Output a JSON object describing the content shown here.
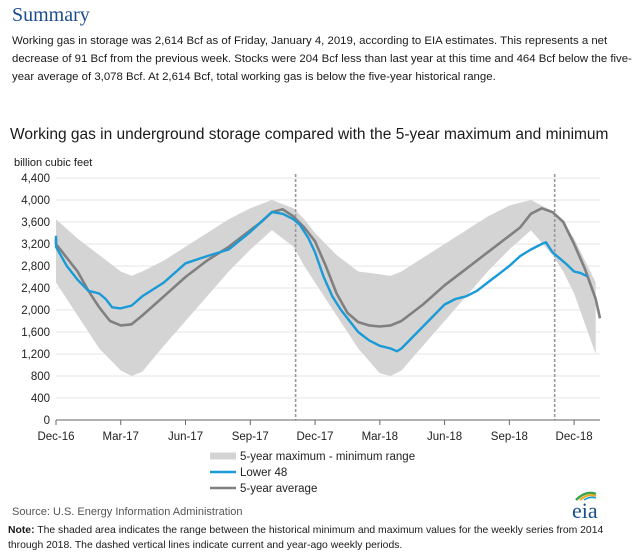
{
  "summary": {
    "title": "Summary",
    "text": "Working gas in storage was 2,614 Bcf as of Friday, January 4, 2019, according to EIA estimates. This represents a net decrease of 91 Bcf from the previous week. Stocks were 204 Bcf less than last year at this time and 464 Bcf below the five-year average of 3,078 Bcf. At 2,614 Bcf, total working gas is below the five-year historical range."
  },
  "footer": {
    "source": "Source:  U.S. Energy Information Administration",
    "note_label": "Note:",
    "note_text": " The shaded area indicates the range between the historical minimum and maximum values for the weekly series from 2014 through 2018. The dashed vertical lines indicate current and year-ago weekly periods.",
    "logo_text": "eia"
  },
  "colors": {
    "range": "#d4d4d4",
    "lower48": "#1a9ad6",
    "avg": "#808080",
    "axis": "#666666",
    "dashed": "#999999"
  },
  "chart_data": {
    "type": "line",
    "title": "Working gas in underground storage compared with the 5-year maximum and minimum",
    "ylabel": "billion cubic feet",
    "ylim": [
      0,
      4400
    ],
    "yticks": [
      0,
      400,
      800,
      1200,
      1600,
      2000,
      2400,
      2800,
      3200,
      3600,
      4000,
      4400
    ],
    "xlim": [
      0,
      25.2
    ],
    "xticks": [
      {
        "x": 0,
        "label": "Dec-16"
      },
      {
        "x": 3,
        "label": "Mar-17"
      },
      {
        "x": 6,
        "label": "Jun-17"
      },
      {
        "x": 9,
        "label": "Sep-17"
      },
      {
        "x": 12,
        "label": "Dec-17"
      },
      {
        "x": 15,
        "label": "Mar-18"
      },
      {
        "x": 18,
        "label": "Jun-18"
      },
      {
        "x": 21,
        "label": "Sep-18"
      },
      {
        "x": 24,
        "label": "Dec-18"
      }
    ],
    "dashed_lines": [
      11.1,
      23.1
    ],
    "legend": [
      "5-year maximum - minimum range",
      "Lower 48",
      "5-year average"
    ],
    "series": [
      {
        "name": "5-year maximum - minimum range",
        "type": "band",
        "points": [
          [
            -0.5,
            3800,
            2700
          ],
          [
            0,
            3650,
            2500
          ],
          [
            1,
            3300,
            1900
          ],
          [
            2,
            3000,
            1300
          ],
          [
            3,
            2700,
            900
          ],
          [
            3.5,
            2620,
            800
          ],
          [
            4,
            2700,
            880
          ],
          [
            5,
            2900,
            1350
          ],
          [
            6,
            3150,
            1800
          ],
          [
            7,
            3400,
            2250
          ],
          [
            8,
            3650,
            2700
          ],
          [
            9,
            3850,
            3100
          ],
          [
            10,
            4000,
            3450
          ],
          [
            11,
            3850,
            3150
          ],
          [
            11.5,
            3650,
            2800
          ],
          [
            12,
            3400,
            2500
          ],
          [
            13,
            3000,
            1900
          ],
          [
            14,
            2700,
            1300
          ],
          [
            15,
            2650,
            850
          ],
          [
            15.5,
            2620,
            800
          ],
          [
            16,
            2700,
            900
          ],
          [
            17,
            2950,
            1350
          ],
          [
            18,
            3200,
            1800
          ],
          [
            19,
            3450,
            2250
          ],
          [
            20,
            3700,
            2700
          ],
          [
            21,
            3900,
            3100
          ],
          [
            22,
            4000,
            3450
          ],
          [
            23,
            3800,
            3000
          ],
          [
            23.5,
            3600,
            2700
          ],
          [
            24,
            3300,
            2300
          ],
          [
            25,
            2500,
            1200
          ]
        ]
      },
      {
        "name": "Lower 48",
        "type": "line",
        "points": [
          [
            -0.5,
            3350
          ],
          [
            -0.2,
            3300
          ],
          [
            0,
            3150
          ],
          [
            0.5,
            2800
          ],
          [
            1,
            2550
          ],
          [
            1.5,
            2350
          ],
          [
            2,
            2300
          ],
          [
            2.3,
            2200
          ],
          [
            2.6,
            2050
          ],
          [
            3,
            2030
          ],
          [
            3.5,
            2080
          ],
          [
            4,
            2250
          ],
          [
            5,
            2500
          ],
          [
            6,
            2850
          ],
          [
            7,
            2980
          ],
          [
            8,
            3100
          ],
          [
            9,
            3420
          ],
          [
            9.5,
            3600
          ],
          [
            10,
            3780
          ],
          [
            10.5,
            3750
          ],
          [
            11,
            3650
          ],
          [
            11.3,
            3550
          ],
          [
            11.7,
            3300
          ],
          [
            12,
            3050
          ],
          [
            12.4,
            2600
          ],
          [
            12.8,
            2250
          ],
          [
            13.2,
            2000
          ],
          [
            13.6,
            1800
          ],
          [
            14,
            1600
          ],
          [
            14.5,
            1450
          ],
          [
            15,
            1350
          ],
          [
            15.5,
            1300
          ],
          [
            15.8,
            1250
          ],
          [
            16,
            1300
          ],
          [
            16.5,
            1500
          ],
          [
            17,
            1700
          ],
          [
            17.5,
            1900
          ],
          [
            18,
            2100
          ],
          [
            18.5,
            2200
          ],
          [
            19,
            2250
          ],
          [
            19.5,
            2350
          ],
          [
            20,
            2500
          ],
          [
            20.5,
            2650
          ],
          [
            21,
            2800
          ],
          [
            21.5,
            2980
          ],
          [
            22,
            3100
          ],
          [
            22.5,
            3200
          ],
          [
            22.7,
            3230
          ],
          [
            23,
            3050
          ],
          [
            23.3,
            2950
          ],
          [
            23.6,
            2850
          ],
          [
            24,
            2700
          ],
          [
            24.3,
            2670
          ],
          [
            24.6,
            2614
          ]
        ]
      },
      {
        "name": "5-year average",
        "type": "line",
        "points": [
          [
            -0.5,
            3300
          ],
          [
            0,
            3200
          ],
          [
            0.5,
            2950
          ],
          [
            1,
            2700
          ],
          [
            1.5,
            2350
          ],
          [
            2,
            2050
          ],
          [
            2.5,
            1800
          ],
          [
            3,
            1720
          ],
          [
            3.5,
            1740
          ],
          [
            4,
            1900
          ],
          [
            5,
            2250
          ],
          [
            6,
            2600
          ],
          [
            7,
            2900
          ],
          [
            8,
            3150
          ],
          [
            9,
            3450
          ],
          [
            9.5,
            3600
          ],
          [
            10,
            3780
          ],
          [
            10.5,
            3830
          ],
          [
            11,
            3700
          ],
          [
            11.5,
            3500
          ],
          [
            12,
            3250
          ],
          [
            12.5,
            2800
          ],
          [
            13,
            2300
          ],
          [
            13.5,
            1950
          ],
          [
            14,
            1780
          ],
          [
            14.5,
            1720
          ],
          [
            15,
            1700
          ],
          [
            15.5,
            1720
          ],
          [
            16,
            1800
          ],
          [
            17,
            2100
          ],
          [
            18,
            2450
          ],
          [
            19,
            2750
          ],
          [
            20,
            3050
          ],
          [
            21,
            3350
          ],
          [
            21.5,
            3500
          ],
          [
            22,
            3750
          ],
          [
            22.5,
            3850
          ],
          [
            23,
            3780
          ],
          [
            23.5,
            3600
          ],
          [
            24,
            3200
          ],
          [
            24.5,
            2750
          ],
          [
            25,
            2200
          ],
          [
            25.5,
            1850
          ]
        ]
      }
    ]
  }
}
